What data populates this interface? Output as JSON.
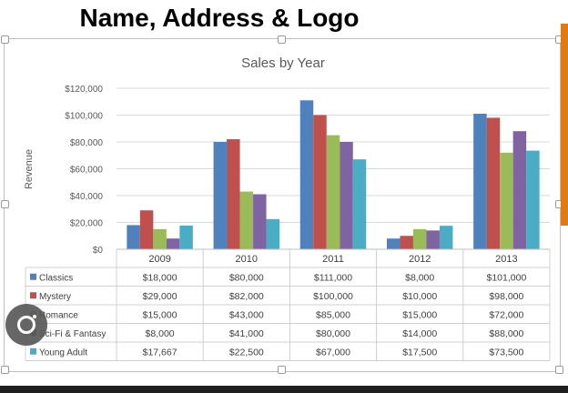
{
  "header": {
    "title": "Name, Address & Logo"
  },
  "icons": {
    "lens": "google-lens-icon"
  },
  "chart_data": {
    "type": "bar",
    "title": "Sales by Year",
    "xlabel": "",
    "ylabel": "Revenue",
    "ylim": [
      0,
      120000
    ],
    "yticks": [
      "$0",
      "$20,000",
      "$40,000",
      "$60,000",
      "$80,000",
      "$100,000",
      "$120,000"
    ],
    "grid": true,
    "legend": "data-table",
    "categories": [
      "2009",
      "2010",
      "2011",
      "2012",
      "2013"
    ],
    "series": [
      {
        "name": "Classics",
        "color": "#4f81bd",
        "values": [
          18000,
          80000,
          111000,
          8000,
          101000
        ],
        "labels": [
          "$18,000",
          "$80,000",
          "$111,000",
          "$8,000",
          "$101,000"
        ]
      },
      {
        "name": "Mystery",
        "color": "#c0504d",
        "values": [
          29000,
          82000,
          100000,
          10000,
          98000
        ],
        "labels": [
          "$29,000",
          "$82,000",
          "$100,000",
          "$10,000",
          "$98,000"
        ]
      },
      {
        "name": "Romance",
        "color": "#9bbb59",
        "values": [
          15000,
          43000,
          85000,
          15000,
          72000
        ],
        "labels": [
          "$15,000",
          "$43,000",
          "$85,000",
          "$15,000",
          "$72,000"
        ]
      },
      {
        "name": "Sci-Fi & Fantasy",
        "color": "#8064a2",
        "values": [
          8000,
          41000,
          80000,
          14000,
          88000
        ],
        "labels": [
          "$8,000",
          "$41,000",
          "$80,000",
          "$14,000",
          "$88,000"
        ]
      },
      {
        "name": "Young Adult",
        "color": "#4bacc6",
        "values": [
          17667,
          22500,
          67000,
          17500,
          73500
        ],
        "labels": [
          "$17,667",
          "$22,500",
          "$67,000",
          "$17,500",
          "$73,500"
        ]
      }
    ]
  }
}
